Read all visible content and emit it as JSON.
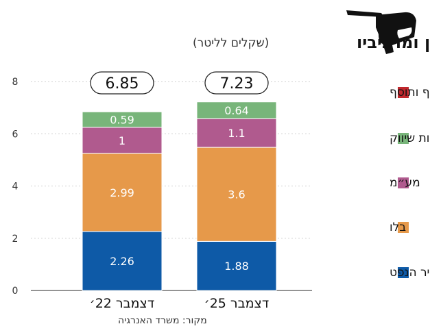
{
  "title": "מחירי הבנזין ומרכיביו",
  "subtitle": "(שקלים לליטר)",
  "source": "מקור: משרד האנרגיה",
  "chart_data": {
    "type": "bar",
    "stacked": true,
    "categories": [
      "דצמבר 22׳",
      "דצמבר 25׳"
    ],
    "totals": [
      "6.85",
      "7.23"
    ],
    "ylim": [
      0,
      8
    ],
    "yticks": [
      0,
      2,
      4,
      6,
      8
    ],
    "grid": true,
    "legend_position": "right",
    "series": [
      {
        "name": "מחיר הנפט",
        "values": [
          2.26,
          1.88
        ],
        "labels": [
          "2.26",
          "1.88"
        ],
        "color": "#0e5aa7"
      },
      {
        "name": "בלו",
        "values": [
          2.99,
          3.6
        ],
        "labels": [
          "2.99",
          "3.6"
        ],
        "color": "#e6994a"
      },
      {
        "name": "מע״מ",
        "values": [
          1,
          1.1
        ],
        "labels": [
          "1",
          "1.1"
        ],
        "color": "#b05a8e"
      },
      {
        "name": "סל הוצאות שיווק",
        "values": [
          0.59,
          0.64
        ],
        "labels": [
          "0.59",
          "0.64"
        ],
        "color": "#78b57a"
      },
      {
        "name": "דלף ותוסף",
        "values": [
          0,
          0
        ],
        "labels": [
          "",
          ""
        ],
        "color": "#c0282d"
      }
    ]
  }
}
